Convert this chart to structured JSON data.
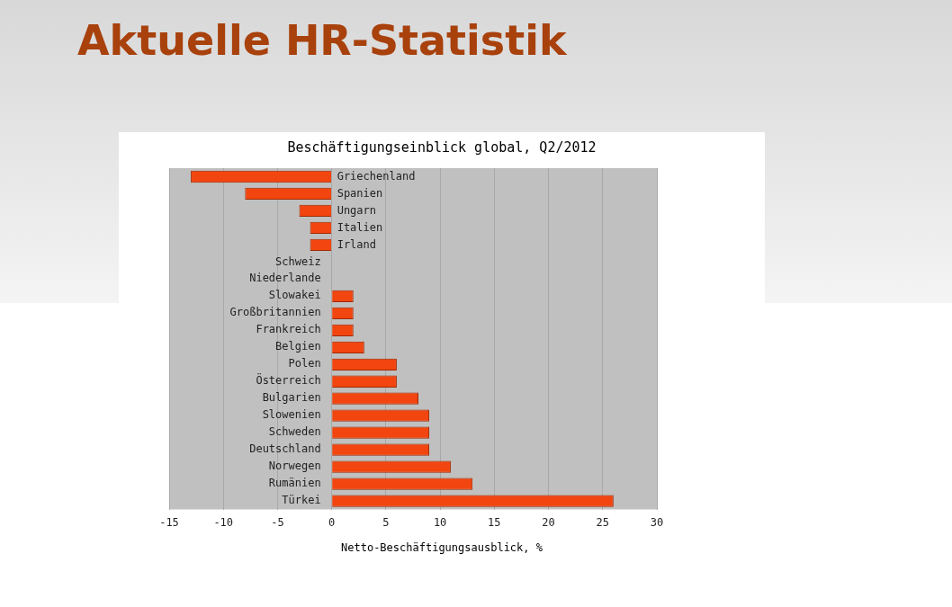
{
  "chart_data": {
    "type": "bar",
    "orientation": "horizontal",
    "title": "Aktuelle HR-Statistik",
    "subtitle": "Beschäftigungseinblick global, Q2/2012",
    "xlabel": "Netto-Beschäftigungsausblick, %",
    "categories": [
      "Griechenland",
      "Spanien",
      "Ungarn",
      "Italien",
      "Irland",
      "Schweiz",
      "Niederlande",
      "Slowakei",
      "Großbritannien",
      "Frankreich",
      "Belgien",
      "Polen",
      "Österreich",
      "Bulgarien",
      "Slowenien",
      "Schweden",
      "Deutschland",
      "Norwegen",
      "Rumänien",
      "Türkei"
    ],
    "values": [
      -13,
      -8,
      -3,
      -2,
      -2,
      0,
      0,
      2,
      2,
      2,
      3,
      6,
      6,
      8,
      9,
      9,
      9,
      11,
      13,
      26
    ],
    "color": "#f2450f",
    "xlim": [
      -15,
      30
    ],
    "xticks": [
      -15,
      -10,
      -5,
      0,
      5,
      10,
      15,
      20,
      25,
      30
    ],
    "grid": "x",
    "legend": false
  }
}
